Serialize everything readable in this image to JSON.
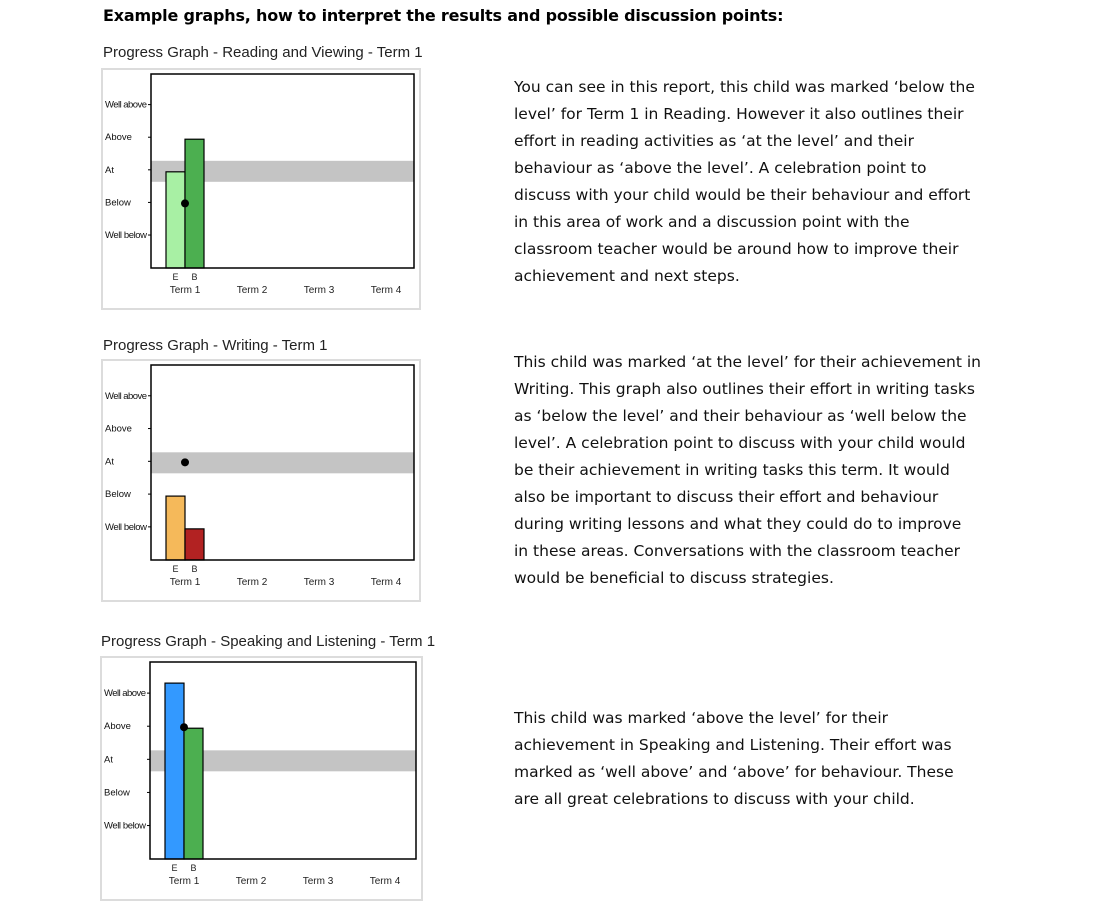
{
  "page": {
    "heading": "Example graphs, how to interpret the results  and possible discussion points:"
  },
  "charts": [
    {
      "title": "Progress Graph - Reading and Viewing - Term 1",
      "paragraph": [
        "You can see in this report, this child was marked ‘below the",
        "level’ for Term 1 in Reading. However it also outlines their",
        "effort in reading activities as ‘at the level’ and their",
        "behaviour as ‘above the level’. A celebration point to",
        "discuss with your child would be their behaviour and effort",
        "in this area of work and a discussion point with the",
        "classroom teacher would be around how to improve their",
        "achievement and next steps."
      ]
    },
    {
      "title": "Progress Graph - Writing - Term 1",
      "paragraph": [
        "This child was marked ‘at the level’ for their achievement in",
        "Writing. This graph also outlines their effort in writing tasks",
        "as ‘below the level’ and their behaviour as ‘well below the",
        "level’. A celebration point to discuss with your child would",
        "be their achievement in writing tasks this term. It would",
        "also be important to discuss their effort and behaviour",
        "during writing lessons and what they could do to improve",
        "in these areas. Conversations with the classroom teacher",
        "would be beneficial to discuss strategies."
      ]
    },
    {
      "title": "Progress Graph - Speaking and Listening - Term 1",
      "paragraph": [
        "This child was marked ‘above the level’ for their",
        "achievement in Speaking and Listening. Their effort was",
        "marked as ‘well above’ and ‘above’ for behaviour. These",
        "are all great celebrations to discuss with your child."
      ]
    }
  ],
  "chart_data": [
    {
      "type": "bar",
      "title": "Progress Graph - Reading and Viewing - Term 1",
      "y_levels": [
        "Well below",
        "Below",
        "At",
        "Above",
        "Well above"
      ],
      "categories": [
        "Term 1",
        "Term 2",
        "Term 3",
        "Term 4"
      ],
      "bar_labels": [
        "E",
        "B"
      ],
      "series": [
        {
          "name": "E",
          "values": [
            3,
            null,
            null,
            null
          ],
          "color": "#a8f0a4"
        },
        {
          "name": "B",
          "values": [
            4,
            null,
            null,
            null
          ],
          "color": "#4caf50"
        }
      ],
      "achievement_dot": [
        2,
        null,
        null,
        null
      ],
      "at_level_band": true
    },
    {
      "type": "bar",
      "title": "Progress Graph - Writing - Term 1",
      "y_levels": [
        "Well below",
        "Below",
        "At",
        "Above",
        "Well above"
      ],
      "categories": [
        "Term 1",
        "Term 2",
        "Term 3",
        "Term 4"
      ],
      "bar_labels": [
        "E",
        "B"
      ],
      "series": [
        {
          "name": "E",
          "values": [
            2,
            null,
            null,
            null
          ],
          "color": "#f5b95a"
        },
        {
          "name": "B",
          "values": [
            1,
            null,
            null,
            null
          ],
          "color": "#b22222"
        }
      ],
      "achievement_dot": [
        3,
        null,
        null,
        null
      ],
      "at_level_band": true
    },
    {
      "type": "bar",
      "title": "Progress Graph - Speaking and Listening - Term 1",
      "y_levels": [
        "Well below",
        "Below",
        "At",
        "Above",
        "Well above"
      ],
      "categories": [
        "Term 1",
        "Term 2",
        "Term 3",
        "Term 4"
      ],
      "bar_labels": [
        "E",
        "B"
      ],
      "series": [
        {
          "name": "E",
          "values": [
            5,
            null,
            null,
            null
          ],
          "color": "#3399ff"
        },
        {
          "name": "B",
          "values": [
            4,
            null,
            null,
            null
          ],
          "color": "#4caf50"
        }
      ],
      "achievement_dot": [
        4,
        null,
        null,
        null
      ],
      "at_level_band": true
    }
  ]
}
